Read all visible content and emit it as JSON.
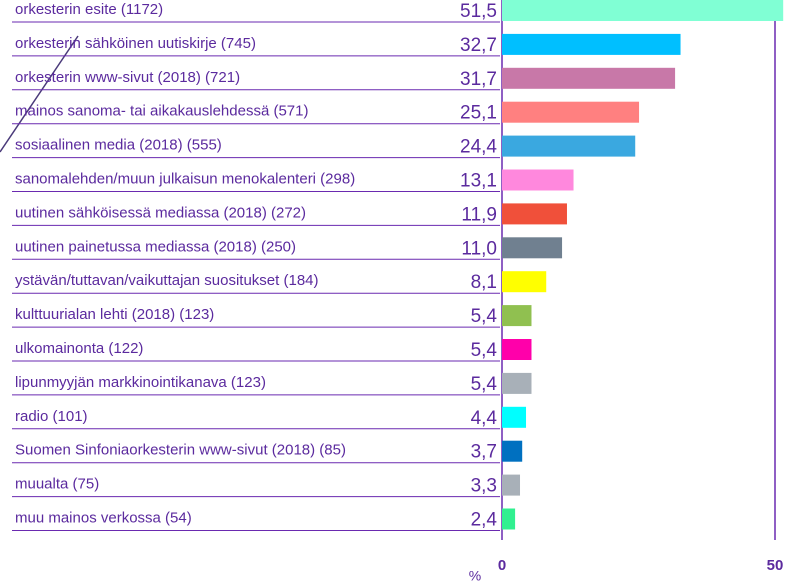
{
  "chart_data": {
    "type": "barh",
    "categories": [
      "orkesterin esite (1172)",
      "orkesterin sähköinen uutiskirje (745)",
      "orkesterin www-sivut (2018) (721)",
      "mainos sanoma- tai aikakauslehdessä (571)",
      "sosiaalinen media (2018) (555)",
      "sanomalehden/muun julkaisun menokalenteri (298)",
      "uutinen sähköisessä mediassa (2018) (272)",
      "uutinen painetussa mediassa (2018) (250)",
      "ystävän/tuttavan/vaikuttajan suositukset (184)",
      "kulttuurialan lehti (2018) (123)",
      "ulkomainonta (122)",
      "lipunmyyjän markkinointikanava (123)",
      "radio (101)",
      "Suomen Sinfoniaorkesterin www-sivut (2018) (85)",
      "muualta (75)",
      "muu mainos verkossa (54)"
    ],
    "values": [
      51.5,
      32.7,
      31.7,
      25.1,
      24.4,
      13.1,
      11.9,
      11.0,
      8.1,
      5.4,
      5.4,
      5.4,
      4.4,
      3.7,
      3.3,
      2.4
    ],
    "value_labels": [
      "51,5",
      "32,7",
      "31,7",
      "25,1",
      "24,4",
      "13,1",
      "11,9",
      "11,0",
      "8,1",
      "5,4",
      "5,4",
      "5,4",
      "4,4",
      "3,7",
      "3,3",
      "2,4"
    ],
    "colors": [
      "#80ffd4",
      "#00bfff",
      "#c878a8",
      "#ff8080",
      "#3aa8e0",
      "#ff88dd",
      "#f0503a",
      "#708090",
      "#ffff00",
      "#90c050",
      "#ff00aa",
      "#a8b0b8",
      "#00ffff",
      "#0070c0",
      "#a8b0b8",
      "#30f090"
    ],
    "xlabel": "%",
    "xlim": [
      0,
      50
    ],
    "xticks": [
      0,
      50
    ],
    "grid": true
  }
}
